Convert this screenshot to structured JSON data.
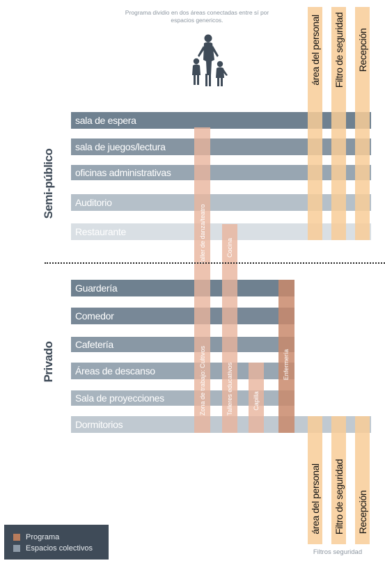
{
  "note": "Programa dividio en dos áreas conectadas entre sí por espacios genericos.",
  "zones": {
    "semi_publico": "Semi-público",
    "privado": "Privado"
  },
  "semi_bands": [
    {
      "label": "sala de espera",
      "color": "#6f8190"
    },
    {
      "label": "sala de juegos/lectura",
      "color": "#8695a2"
    },
    {
      "label": "oficinas administrativas",
      "color": "#98a6b2"
    },
    {
      "label": "Auditorio",
      "color": "#b5c0c9"
    },
    {
      "label": "Restaurante",
      "color": "#d9dfe4"
    }
  ],
  "private_bands": [
    {
      "label": "Guardería",
      "color": "#6f8190"
    },
    {
      "label": "Comedor",
      "color": "#788897"
    },
    {
      "label": "Cafetería",
      "color": "#8998a5"
    },
    {
      "label": "Áreas de descanso",
      "color": "#98a6b2"
    },
    {
      "label": "Sala de proyecciones",
      "color": "#a8b4be"
    },
    {
      "label": "Dormitorios",
      "color": "#c0c9d1"
    }
  ],
  "programa_columns": [
    {
      "label": "Taller de danza/teatro"
    },
    {
      "label": "Cocina"
    },
    {
      "label": "Zona de trabajo: Cultivos"
    },
    {
      "label": "Talleres educativos"
    },
    {
      "label": "Capilla"
    },
    {
      "label": "Enfermería"
    }
  ],
  "service_columns": {
    "top": [
      "área del personal",
      "Filtro de seguridad",
      "Recepción"
    ],
    "bottom": [
      "área del personal",
      "Filtro de seguridad",
      "Recepción"
    ]
  },
  "filtros_label": "Filtros seguridad",
  "legend": [
    {
      "label": "Programa",
      "color": "#b87c5c"
    },
    {
      "label": "Espacios colectivos",
      "color": "#8d9aa7"
    }
  ],
  "colors": {
    "service_column": "#f8cd98",
    "programa_column": "#e8b49c",
    "enfermeria_column": "#c98a6c",
    "divider": "#222222"
  }
}
